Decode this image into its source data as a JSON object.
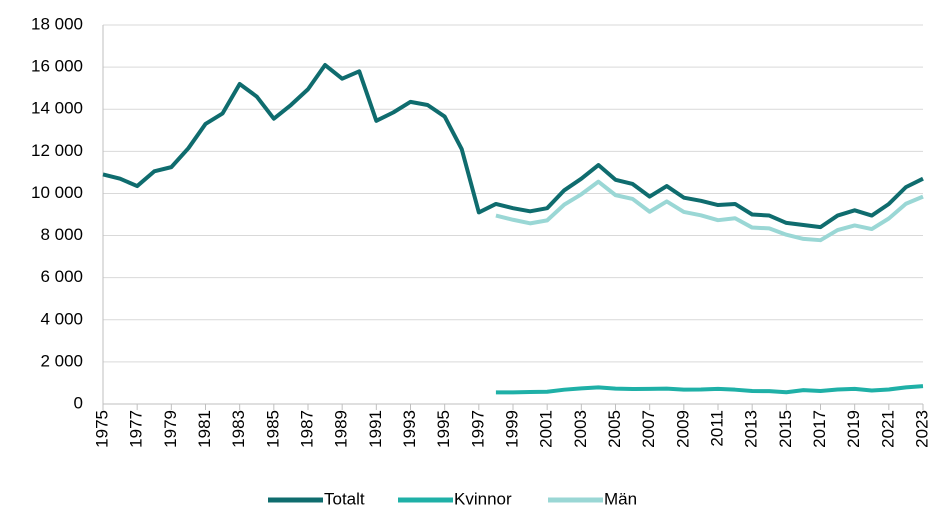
{
  "chart_data": {
    "type": "line",
    "x": [
      1975,
      1976,
      1977,
      1978,
      1979,
      1980,
      1981,
      1982,
      1983,
      1984,
      1985,
      1986,
      1987,
      1988,
      1989,
      1990,
      1991,
      1992,
      1993,
      1994,
      1995,
      1996,
      1997,
      1998,
      1999,
      2000,
      2001,
      2002,
      2003,
      2004,
      2005,
      2006,
      2007,
      2008,
      2009,
      2010,
      2011,
      2012,
      2013,
      2014,
      2015,
      2016,
      2017,
      2018,
      2019,
      2020,
      2021,
      2022,
      2023
    ],
    "series": [
      {
        "name": "Totalt",
        "color": "#0f6c6e",
        "values": [
          10900,
          10700,
          10350,
          11050,
          11250,
          12150,
          13300,
          13800,
          15200,
          14600,
          13550,
          14200,
          14950,
          16100,
          15450,
          15800,
          13450,
          13850,
          14350,
          14200,
          13650,
          12100,
          9100,
          9500,
          9300,
          9150,
          9300,
          10150,
          10700,
          11350,
          10650,
          10450,
          9850,
          10350,
          9800,
          9650,
          9450,
          9500,
          9000,
          8950,
          8600,
          8500,
          8400,
          8950,
          9200,
          8950,
          9500,
          10300,
          10700
        ]
      },
      {
        "name": "Kvinnor",
        "color": "#1fb0a7",
        "values": [
          null,
          null,
          null,
          null,
          null,
          null,
          null,
          null,
          null,
          null,
          null,
          null,
          null,
          null,
          null,
          null,
          null,
          null,
          null,
          null,
          null,
          null,
          null,
          550,
          550,
          570,
          580,
          680,
          740,
          790,
          730,
          710,
          720,
          730,
          680,
          690,
          720,
          680,
          620,
          610,
          560,
          660,
          620,
          690,
          720,
          640,
          690,
          790,
          850
        ]
      },
      {
        "name": "Män",
        "color": "#9ad7d5",
        "values": [
          null,
          null,
          null,
          null,
          null,
          null,
          null,
          null,
          null,
          null,
          null,
          null,
          null,
          null,
          null,
          null,
          null,
          null,
          null,
          null,
          null,
          null,
          null,
          8950,
          8750,
          8580,
          8720,
          9470,
          9960,
          10560,
          9920,
          9740,
          9130,
          9620,
          9120,
          8960,
          8730,
          8820,
          8380,
          8340,
          8040,
          7840,
          7780,
          8260,
          8480,
          8310,
          8810,
          9510,
          9850
        ]
      }
    ],
    "xlim": [
      1975,
      2023
    ],
    "xticks": [
      1975,
      1977,
      1979,
      1981,
      1983,
      1985,
      1987,
      1989,
      1991,
      1993,
      1995,
      1997,
      1999,
      2001,
      2003,
      2005,
      2007,
      2009,
      2011,
      2013,
      2015,
      2017,
      2019,
      2021,
      2023
    ],
    "ylim": [
      0,
      18000
    ],
    "yticks": [
      0,
      {
        "value": 2000,
        "label": "2 000"
      },
      {
        "value": 4000,
        "label": "4 000"
      },
      {
        "value": 6000,
        "label": "6 000"
      },
      {
        "value": 8000,
        "label": "8 000"
      },
      {
        "value": 10000,
        "label": "10 000"
      },
      {
        "value": 12000,
        "label": "12 000"
      },
      {
        "value": 14000,
        "label": "14 000"
      },
      {
        "value": 16000,
        "label": "16 000"
      },
      {
        "value": 18000,
        "label": "18 000"
      }
    ],
    "grid": true,
    "legend": "bottom"
  }
}
